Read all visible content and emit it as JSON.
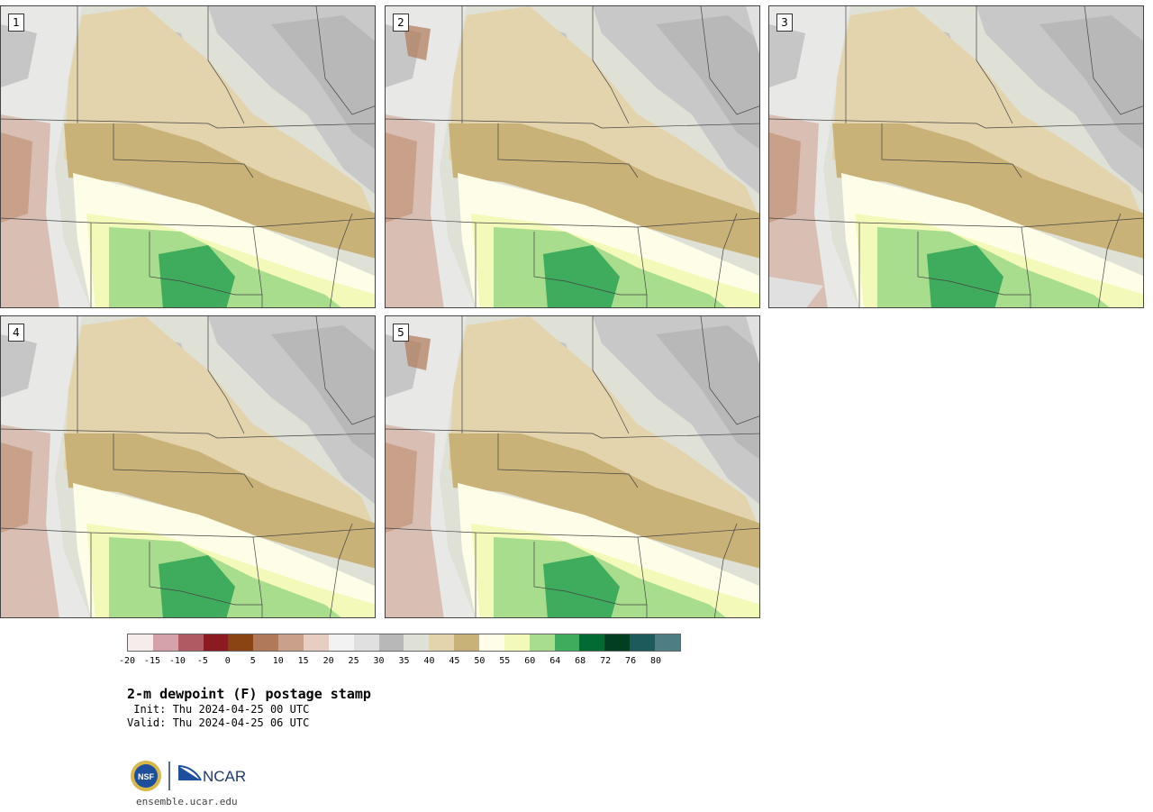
{
  "panels": [
    {
      "label": "1"
    },
    {
      "label": "2"
    },
    {
      "label": "3"
    },
    {
      "label": "4"
    },
    {
      "label": "5"
    }
  ],
  "colorbar": {
    "colors": [
      "#f5ecec",
      "#d6a2aa",
      "#b05a63",
      "#8b1a22",
      "#8a4413",
      "#b0795a",
      "#c9a08a",
      "#e6cfc2",
      "#f2f2f2",
      "#e0e0e0",
      "#b8b8b8",
      "#dfe0d6",
      "#e3d4ae",
      "#c9b277",
      "#fefee8",
      "#f3f9b8",
      "#a8dd8e",
      "#3fab5c",
      "#026a33",
      "#023e20",
      "#1c5a5c",
      "#4e7e84"
    ],
    "tick_labels": [
      "-20",
      "-15",
      "-10",
      "-5",
      "0",
      "5",
      "10",
      "15",
      "20",
      "25",
      "30",
      "35",
      "40",
      "45",
      "50",
      "55",
      "60",
      "64",
      "68",
      "72",
      "76",
      "80"
    ]
  },
  "title": "2-m dewpoint (F) postage stamp",
  "init_line": " Init: Thu 2024-04-25 00 UTC",
  "valid_line": "Valid: Thu 2024-04-25 06 UTC",
  "logo": {
    "nsf": "NSF",
    "ncar": "NCAR"
  },
  "website": "ensemble.ucar.edu"
}
